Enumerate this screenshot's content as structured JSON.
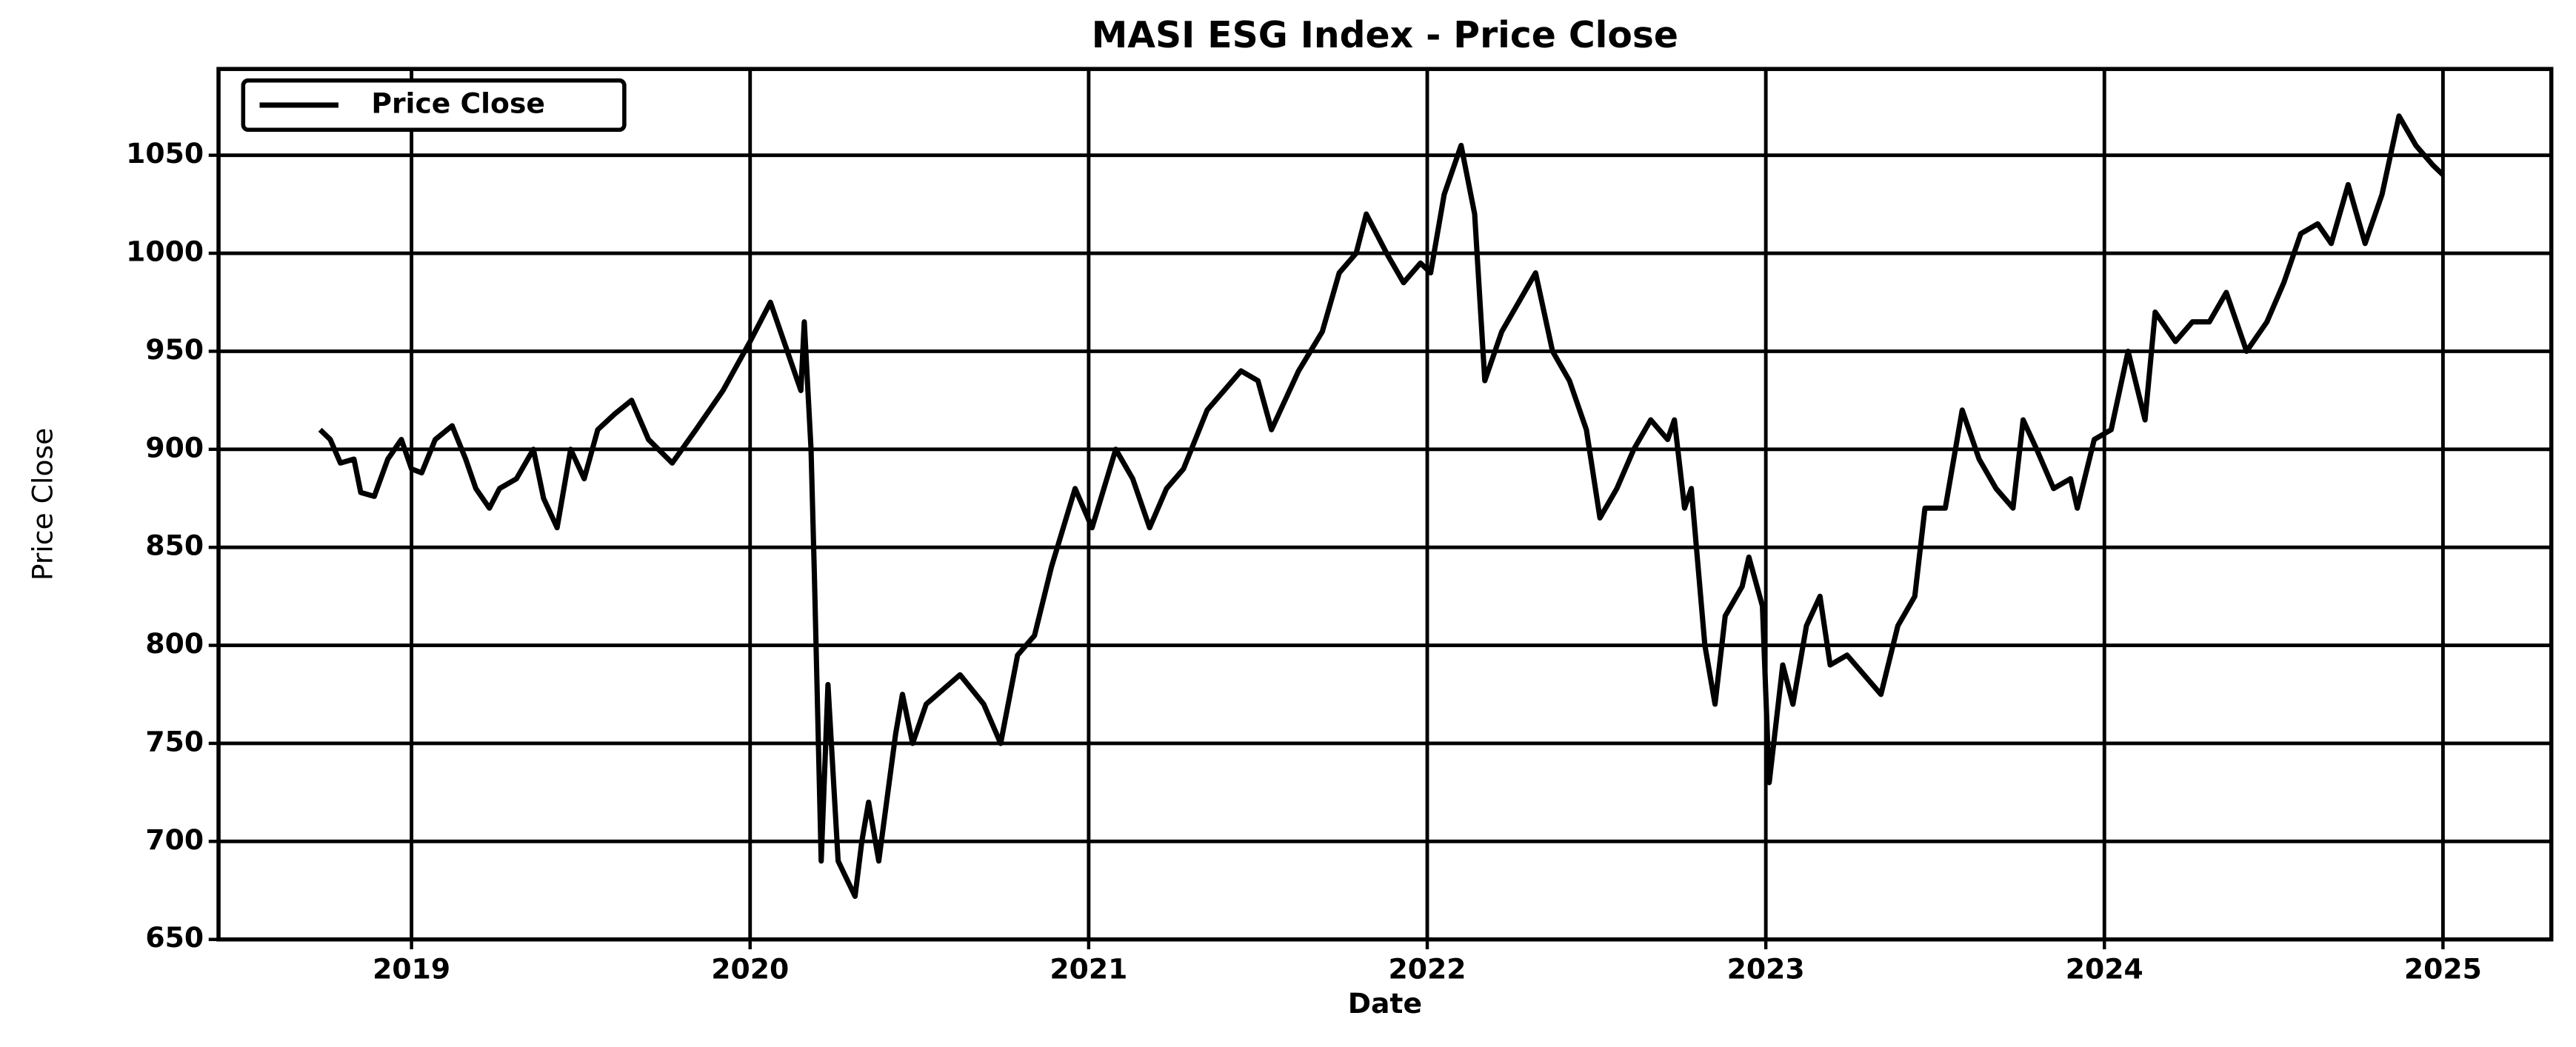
{
  "chart_data": {
    "type": "line",
    "title": "MASI ESG Index - Price Close",
    "x_label": "Date",
    "y_label": "Price Close",
    "x": [
      2018.73,
      2018.76,
      2018.79,
      2018.83,
      2018.85,
      2018.89,
      2018.93,
      2018.97,
      2019.0,
      2019.03,
      2019.07,
      2019.12,
      2019.16,
      2019.19,
      2019.23,
      2019.26,
      2019.31,
      2019.36,
      2019.39,
      2019.43,
      2019.47,
      2019.51,
      2019.55,
      2019.6,
      2019.65,
      2019.7,
      2019.77,
      2019.84,
      2019.92,
      2020.0,
      2020.06,
      2020.11,
      2020.15,
      2020.16,
      2020.18,
      2020.19,
      2020.21,
      2020.23,
      2020.26,
      2020.31,
      2020.33,
      2020.35,
      2020.38,
      2020.43,
      2020.45,
      2020.48,
      2020.52,
      2020.62,
      2020.69,
      2020.74,
      2020.79,
      2020.84,
      2020.89,
      2020.96,
      2021.01,
      2021.08,
      2021.13,
      2021.18,
      2021.23,
      2021.28,
      2021.35,
      2021.4,
      2021.45,
      2021.5,
      2021.54,
      2021.62,
      2021.69,
      2021.74,
      2021.79,
      2021.82,
      2021.88,
      2021.93,
      2021.98,
      2022.01,
      2022.05,
      2022.1,
      2022.14,
      2022.17,
      2022.22,
      2022.27,
      2022.32,
      2022.37,
      2022.42,
      2022.47,
      2022.51,
      2022.56,
      2022.61,
      2022.66,
      2022.71,
      2022.73,
      2022.76,
      2022.78,
      2022.82,
      2022.85,
      2022.88,
      2022.93,
      2022.95,
      2022.99,
      2023.01,
      2023.05,
      2023.08,
      2023.12,
      2023.16,
      2023.19,
      2023.24,
      2023.29,
      2023.34,
      2023.39,
      2023.44,
      2023.47,
      2023.53,
      2023.58,
      2023.63,
      2023.68,
      2023.73,
      2023.76,
      2023.8,
      2023.85,
      2023.9,
      2023.92,
      2023.97,
      2024.02,
      2024.07,
      2024.12,
      2024.15,
      2024.21,
      2024.26,
      2024.31,
      2024.36,
      2024.42,
      2024.48,
      2024.53,
      2024.58,
      2024.63,
      2024.67,
      2024.72,
      2024.77,
      2024.82,
      2024.87,
      2024.92,
      2024.97,
      2025.0
    ],
    "series": [
      {
        "name": "Price Close",
        "color": "#000000",
        "values": [
          910,
          905,
          893,
          895,
          878,
          876,
          895,
          905,
          890,
          888,
          905,
          912,
          895,
          880,
          870,
          880,
          885,
          900,
          875,
          860,
          900,
          885,
          910,
          918,
          925,
          905,
          893,
          910,
          930,
          955,
          975,
          950,
          930,
          965,
          900,
          835,
          690,
          780,
          690,
          672,
          700,
          720,
          690,
          755,
          775,
          750,
          770,
          785,
          770,
          750,
          795,
          805,
          840,
          880,
          860,
          900,
          885,
          860,
          880,
          890,
          920,
          930,
          940,
          935,
          910,
          940,
          960,
          990,
          1000,
          1020,
          1000,
          985,
          995,
          990,
          1030,
          1055,
          1020,
          935,
          960,
          975,
          990,
          950,
          935,
          910,
          865,
          880,
          900,
          915,
          905,
          915,
          870,
          880,
          800,
          770,
          815,
          830,
          845,
          820,
          730,
          790,
          770,
          810,
          825,
          790,
          795,
          785,
          775,
          810,
          825,
          870,
          870,
          920,
          895,
          880,
          870,
          915,
          900,
          880,
          885,
          870,
          905,
          910,
          950,
          915,
          970,
          955,
          965,
          965,
          980,
          950,
          965,
          985,
          1010,
          1015,
          1005,
          1035,
          1005,
          1030,
          1070,
          1055,
          1045,
          1040
        ]
      }
    ],
    "xlim": [
      2018.43,
      2025.32
    ],
    "xticks": [
      2019,
      2020,
      2021,
      2022,
      2023,
      2024,
      2025
    ],
    "ylim": [
      650,
      1094
    ],
    "yticks": [
      650,
      700,
      750,
      800,
      850,
      900,
      950,
      1000,
      1050
    ],
    "grid": true,
    "legend": "upper left"
  }
}
